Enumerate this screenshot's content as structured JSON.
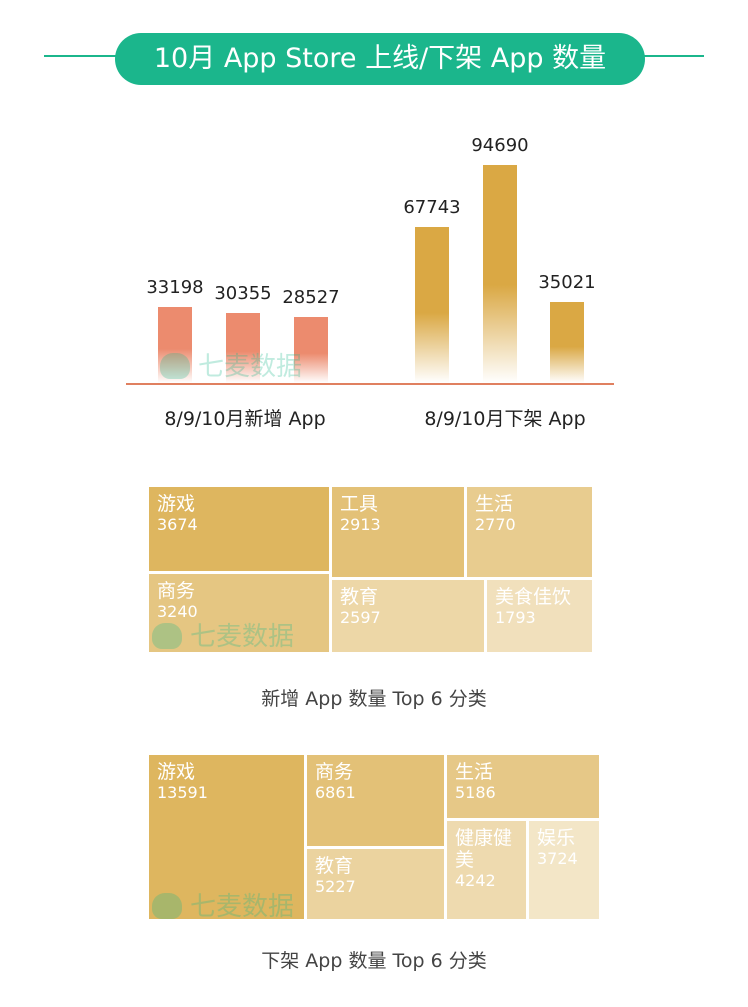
{
  "title": "10月 App Store 上线/下架 App 数量",
  "watermark": "七麦数据",
  "chart_data": [
    {
      "type": "bar",
      "groups": [
        {
          "label": "8/9/10月新增 App",
          "values": [
            33198,
            30355,
            28527
          ]
        },
        {
          "label": "8/9/10月下架 App",
          "values": [
            67743,
            94690,
            35021
          ]
        }
      ],
      "colors": {
        "new": "#ec8b6e",
        "removed": "#daa844"
      }
    },
    {
      "type": "treemap",
      "title": "新增 App 数量 Top 6 分类",
      "items": [
        {
          "name": "游戏",
          "value": 3674
        },
        {
          "name": "工具",
          "value": 2913
        },
        {
          "name": "生活",
          "value": 2770
        },
        {
          "name": "商务",
          "value": 3240
        },
        {
          "name": "教育",
          "value": 2597
        },
        {
          "name": "美食佳饮",
          "value": 1793
        }
      ]
    },
    {
      "type": "treemap",
      "title": "下架 App 数量 Top 6 分类",
      "items": [
        {
          "name": "游戏",
          "value": 13591
        },
        {
          "name": "商务",
          "value": 6861
        },
        {
          "name": "生活",
          "value": 5186
        },
        {
          "name": "教育",
          "value": 5227
        },
        {
          "name": "健康健美",
          "value": 4242
        },
        {
          "name": "娱乐",
          "value": 3724
        }
      ]
    }
  ]
}
